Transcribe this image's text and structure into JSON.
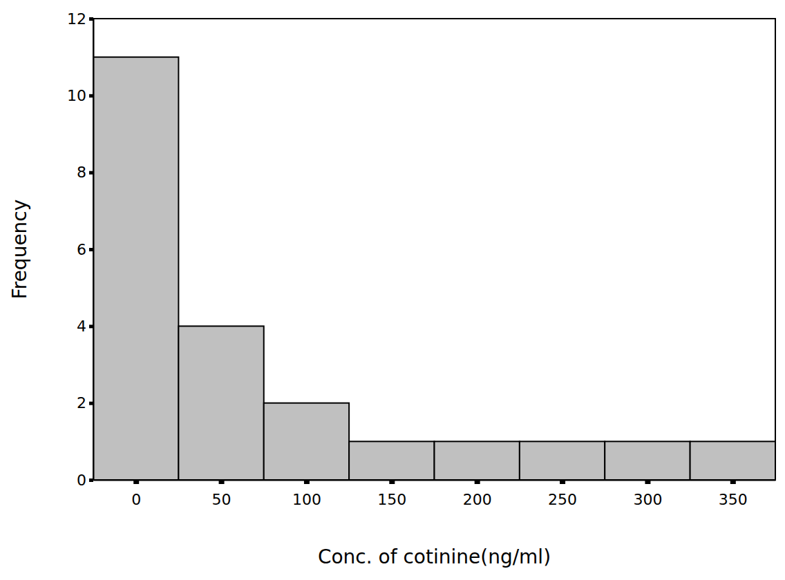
{
  "chart_data": {
    "type": "histogram",
    "xlabel": "Conc. of cotinine(ng/ml)",
    "ylabel": "Frequency",
    "bins": [
      -25,
      25,
      75,
      125,
      175,
      225,
      275,
      325,
      375
    ],
    "values": [
      11,
      4,
      2,
      1,
      1,
      1,
      1,
      1
    ],
    "color": "#c0c0c0",
    "xlim": [
      -25,
      375
    ],
    "xticks": [
      0,
      50,
      100,
      150,
      200,
      250,
      300,
      350
    ],
    "ylim": [
      0,
      12
    ],
    "yticks": [
      0,
      2,
      4,
      6,
      8,
      10,
      12
    ],
    "grid": false
  }
}
